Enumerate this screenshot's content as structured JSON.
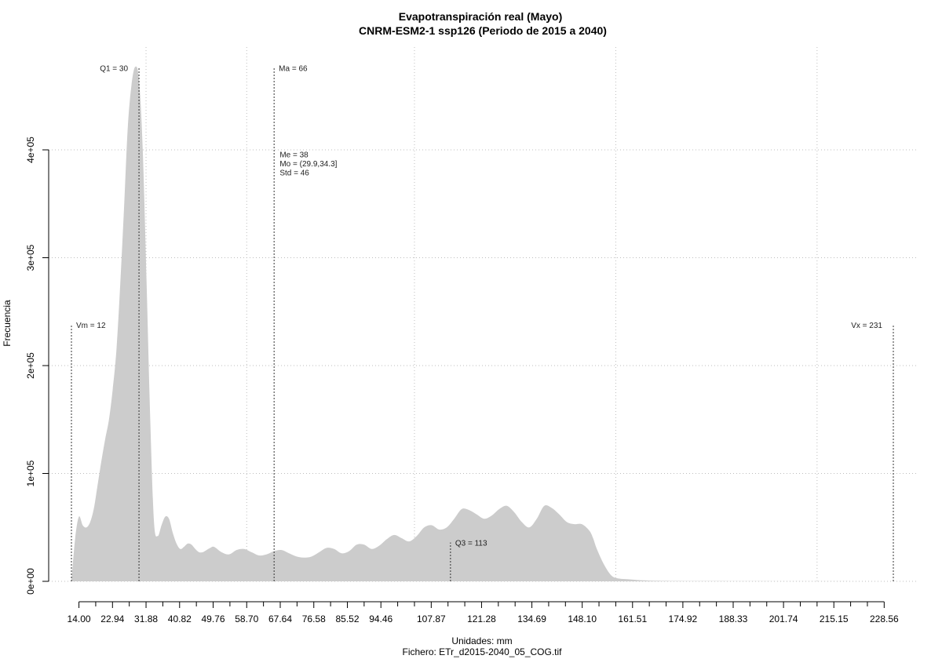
{
  "chart_data": {
    "type": "area",
    "title": "Evapotranspiración real (Mayo)",
    "subtitle": "CNRM-ESM2-1 ssp126 (Periodo de 2015 a 2040)",
    "xlabel": "Unidades: mm",
    "footer": "Fichero: ETr_d2015-2040_05_COG.tif",
    "ylabel": "Frecuencia",
    "xlim": [
      10.0,
      233.0
    ],
    "ylim": [
      0,
      480000
    ],
    "x_tick_values": [
      14.0,
      22.94,
      31.88,
      40.82,
      49.76,
      58.7,
      67.64,
      76.58,
      85.52,
      94.46,
      107.87,
      121.28,
      134.69,
      148.1,
      161.51,
      174.92,
      188.33,
      201.74,
      215.15,
      228.56
    ],
    "x_tick_labels": [
      "14.00",
      "22.94",
      "31.88",
      "40.82",
      "49.76",
      "58.70",
      "67.64",
      "76.58",
      "85.52",
      "94.46",
      "107.87",
      "121.28",
      "134.69",
      "148.10",
      "161.51",
      "174.92",
      "188.33",
      "201.74",
      "215.15",
      "228.56"
    ],
    "x_minor_ticks": [
      18.47,
      27.41,
      36.35,
      45.29,
      54.23,
      63.17,
      72.11,
      81.05,
      89.99,
      98.93,
      103.4,
      112.34,
      116.81,
      125.75,
      130.22,
      139.16,
      143.63,
      152.57,
      157.04,
      165.98,
      170.45,
      179.39,
      183.86,
      192.8,
      197.27,
      206.21,
      210.68,
      219.62,
      224.09
    ],
    "y_tick_values": [
      0,
      100000,
      200000,
      300000,
      400000
    ],
    "y_tick_labels": [
      "0e+00",
      "1e+05",
      "2e+05",
      "3e+05",
      "4e+05"
    ],
    "grid": true,
    "grid_x": [
      31.88,
      58.7,
      103.4,
      157.04,
      210.68
    ],
    "fill_color": "#cccccc",
    "x": [
      12,
      13,
      14,
      15,
      16,
      17,
      18,
      19,
      20,
      21,
      22,
      23,
      24,
      25,
      26,
      27,
      28,
      29,
      30,
      31,
      32,
      33,
      34,
      35,
      36,
      37,
      38,
      39,
      40,
      41,
      42,
      43,
      44,
      45,
      46,
      47,
      48,
      49,
      50,
      52,
      54,
      56,
      58,
      60,
      62,
      64,
      66,
      68,
      70,
      72,
      74,
      76,
      78,
      80,
      82,
      84,
      86,
      88,
      90,
      92,
      94,
      96,
      98,
      100,
      102,
      104,
      106,
      108,
      110,
      112,
      114,
      116,
      118,
      120,
      122,
      124,
      126,
      128,
      130,
      132,
      134,
      136,
      138,
      140,
      142,
      144,
      146,
      148,
      150,
      151,
      152,
      154,
      156,
      158,
      160,
      162,
      164,
      168,
      175,
      190,
      210,
      231
    ],
    "y": [
      0,
      40000,
      60000,
      52000,
      50000,
      55000,
      68000,
      90000,
      112000,
      132000,
      150000,
      178000,
      215000,
      275000,
      345000,
      420000,
      460000,
      477000,
      465000,
      400000,
      280000,
      150000,
      55000,
      42000,
      52000,
      60000,
      58000,
      45000,
      35000,
      30000,
      32000,
      35000,
      34000,
      30000,
      27000,
      27000,
      29000,
      31000,
      32000,
      27000,
      25000,
      29000,
      30000,
      27000,
      24000,
      25000,
      28000,
      29000,
      26000,
      23000,
      22000,
      23000,
      27000,
      31000,
      30000,
      26000,
      28000,
      34000,
      34000,
      30000,
      33000,
      39000,
      43000,
      40000,
      37000,
      42000,
      50000,
      52000,
      48000,
      50000,
      58000,
      67000,
      66000,
      62000,
      58000,
      61000,
      67000,
      70000,
      64000,
      55000,
      50000,
      58000,
      70000,
      68000,
      62000,
      55000,
      53000,
      53000,
      47000,
      40000,
      30000,
      15000,
      5000,
      2500,
      2000,
      1500,
      1000,
      500,
      300,
      200,
      100,
      0
    ],
    "markers": [
      {
        "label": "Vm = 12",
        "x": 12,
        "y_top": 238000,
        "label_side": "right"
      },
      {
        "label": "Q1 = 30",
        "x": 30,
        "y_top": 476000,
        "label_side": "left"
      },
      {
        "label": "Ma = 66",
        "x": 66,
        "y_top": 476000,
        "label_side": "right"
      },
      {
        "label": "Q3 = 113",
        "x": 113,
        "y_top": 36000,
        "label_side": "right"
      },
      {
        "label": "Vx = 231",
        "x": 231,
        "y_top": 238000,
        "label_side": "left"
      }
    ],
    "stats": {
      "x": 67.5,
      "y": 393000,
      "lines": [
        "Me = 38",
        "Mo = (29.9,34.3]",
        "Std = 46"
      ]
    }
  }
}
